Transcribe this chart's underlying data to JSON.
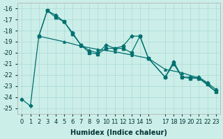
{
  "xlabel": "Humidex (Indice chaleur)",
  "background_color": "#cceee8",
  "grid_color": "#b0ddd8",
  "line_color": "#007070",
  "xlim": [
    -0.5,
    23.5
  ],
  "ylim": [
    -25.5,
    -15.5
  ],
  "xticks": [
    0,
    1,
    2,
    3,
    4,
    5,
    6,
    7,
    8,
    9,
    10,
    11,
    12,
    13,
    14,
    15,
    17,
    18,
    19,
    20,
    21,
    22,
    23
  ],
  "yticks": [
    -16,
    -17,
    -18,
    -19,
    -20,
    -21,
    -22,
    -23,
    -24,
    -25
  ],
  "line1_x": [
    0,
    1,
    2,
    3,
    4,
    5,
    6,
    7,
    8,
    9,
    10,
    11,
    12,
    13,
    14,
    15,
    17,
    18,
    19,
    20,
    21,
    22,
    23
  ],
  "line1_y": [
    -24.2,
    -24.8,
    -18.5,
    -16.2,
    -16.6,
    -17.2,
    -18.2,
    -19.3,
    -19.8,
    -20.0,
    -19.3,
    -19.6,
    -19.4,
    -18.5,
    -18.5,
    -20.5,
    -22.2,
    -20.8,
    -22.2,
    -22.2,
    -22.2,
    -22.7,
    -23.3
  ],
  "line2_x": [
    2,
    3,
    4,
    5,
    6,
    7,
    8,
    9,
    10,
    11,
    12,
    13,
    14,
    15,
    17,
    18,
    19,
    20,
    21,
    22,
    23
  ],
  "line2_y": [
    -18.5,
    -16.2,
    -16.8,
    -17.2,
    -18.3,
    -19.3,
    -20.0,
    -20.1,
    -19.6,
    -19.6,
    -19.6,
    -20.0,
    -18.5,
    -20.5,
    -22.2,
    -21.0,
    -22.2,
    -22.3,
    -22.3,
    -22.8,
    -23.5
  ],
  "line3_x": [
    2,
    5,
    7,
    9,
    11,
    13,
    15,
    17,
    19,
    21,
    23
  ],
  "line3_y": [
    -18.5,
    -19.0,
    -19.4,
    -19.7,
    -19.9,
    -20.2,
    -20.5,
    -21.5,
    -21.8,
    -22.3,
    -23.5
  ]
}
